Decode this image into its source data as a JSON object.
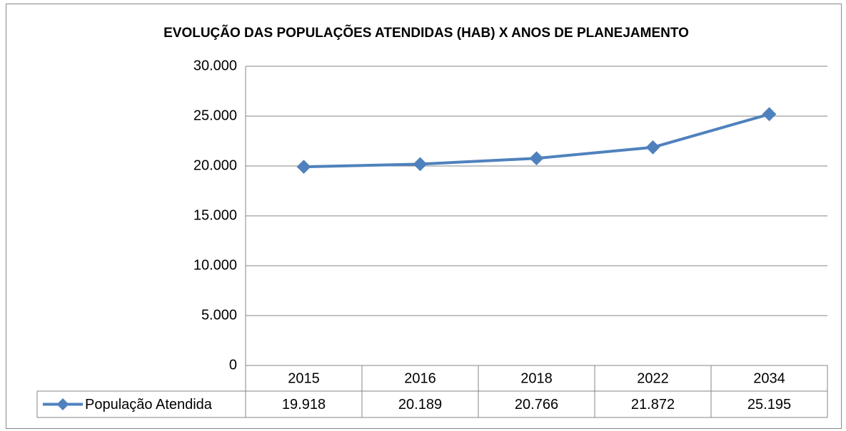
{
  "chart_data": {
    "type": "line",
    "title": "EVOLUÇÃO DAS POPULAÇÕES ATENDIDAS (HAB) X ANOS DE PLANEJAMENTO",
    "categories": [
      "2015",
      "2016",
      "2018",
      "2022",
      "2034"
    ],
    "series": [
      {
        "name": "População Atendida",
        "color": "#4f81bd",
        "values": [
          19918,
          20189,
          20766,
          21872,
          25195
        ],
        "value_labels": [
          "19.918",
          "20.189",
          "20.766",
          "21.872",
          "25.195"
        ]
      }
    ],
    "ylim": [
      0,
      30000
    ],
    "yticks": [
      0,
      {
        "value": 5000,
        "label": "5.000"
      },
      {
        "value": 10000,
        "label": "10.000"
      },
      {
        "value": 15000,
        "label": "15.000"
      },
      {
        "value": 20000,
        "label": "20.000"
      },
      {
        "value": 25000,
        "label": "25.000"
      },
      {
        "value": 30000,
        "label": "30.000"
      }
    ],
    "grid": true
  }
}
